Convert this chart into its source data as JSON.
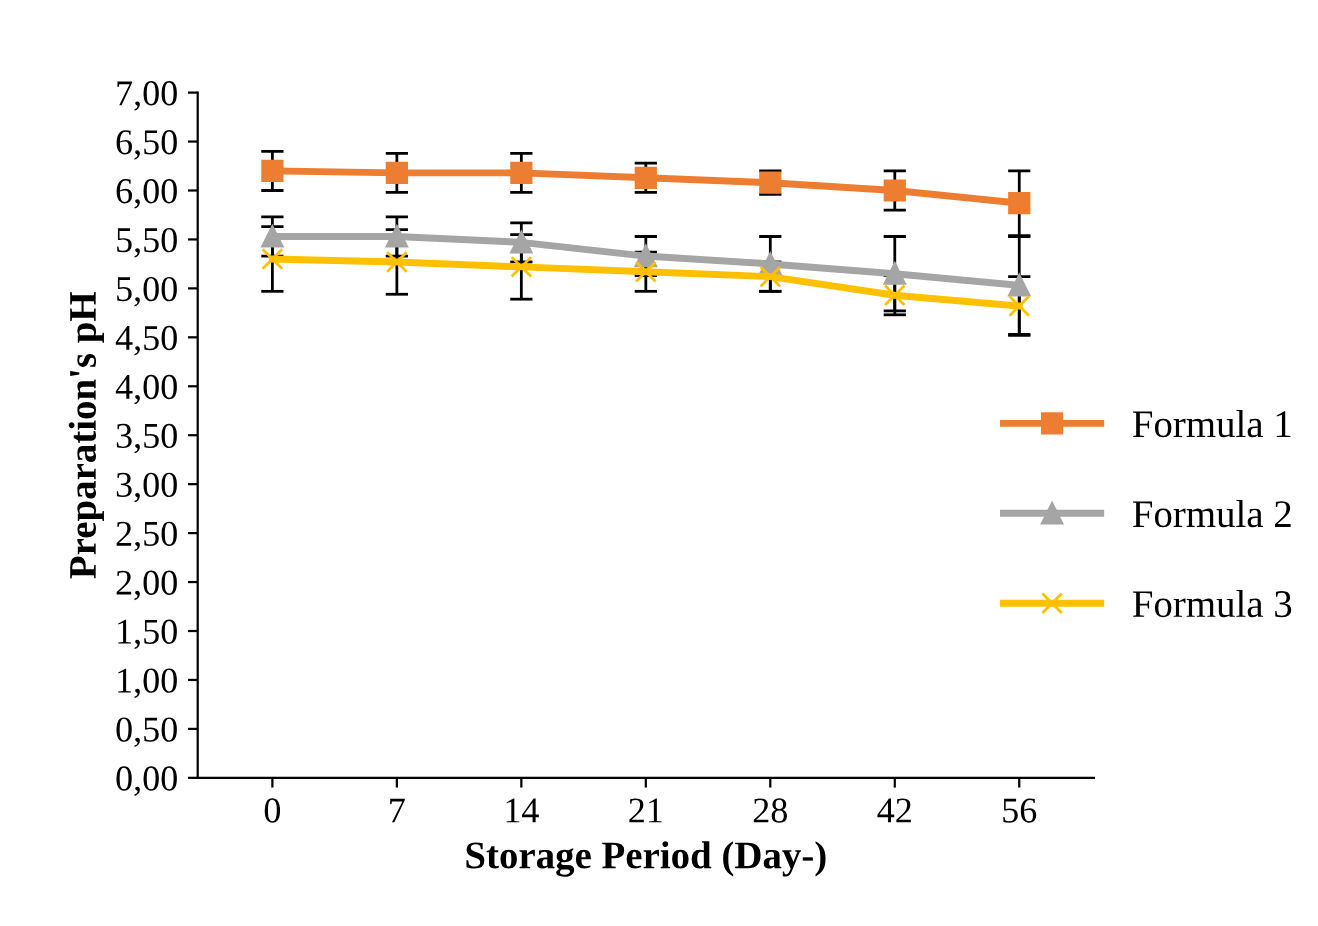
{
  "chart_data": {
    "type": "line",
    "xlabel": "Storage Period (Day-)",
    "ylabel": "Preparation's pH",
    "categories": [
      "0",
      "7",
      "14",
      "21",
      "28",
      "42",
      "56"
    ],
    "series": [
      {
        "name": "Formula 1",
        "color": "#ed7d31",
        "marker": "square",
        "values": [
          6.2,
          6.18,
          6.18,
          6.13,
          6.08,
          6.0,
          5.87
        ],
        "errors": [
          0.2,
          0.2,
          0.2,
          0.15,
          0.12,
          0.2,
          0.33
        ]
      },
      {
        "name": "Formula 2",
        "color": "#a5a5a5",
        "marker": "triangle",
        "values": [
          5.53,
          5.53,
          5.47,
          5.33,
          5.25,
          5.15,
          5.03
        ],
        "errors": [
          0.2,
          0.2,
          0.2,
          0.2,
          0.28,
          0.38,
          0.5
        ]
      },
      {
        "name": "Formula 3",
        "color": "#ffc000",
        "marker": "cross",
        "values": [
          5.3,
          5.27,
          5.22,
          5.17,
          5.12,
          4.93,
          4.82
        ],
        "errors": [
          0.33,
          0.33,
          0.33,
          0.2,
          0.15,
          0.2,
          0.3
        ]
      }
    ],
    "ylim": [
      0,
      7
    ],
    "yticks": [
      {
        "value": 0,
        "label": "0,00"
      },
      {
        "value": 0.5,
        "label": "0,50"
      },
      {
        "value": 1,
        "label": "1,00"
      },
      {
        "value": 1.5,
        "label": "1,50"
      },
      {
        "value": 2,
        "label": "2,00"
      },
      {
        "value": 2.5,
        "label": "2,50"
      },
      {
        "value": 3,
        "label": "3,00"
      },
      {
        "value": 3.5,
        "label": "3,50"
      },
      {
        "value": 4,
        "label": "4,00"
      },
      {
        "value": 4.5,
        "label": "4,50"
      },
      {
        "value": 5,
        "label": "5,00"
      },
      {
        "value": 5.5,
        "label": "5,50"
      },
      {
        "value": 6,
        "label": "6,00"
      },
      {
        "value": 6.5,
        "label": "6,50"
      },
      {
        "value": 7,
        "label": "7,00"
      }
    ],
    "grid": false,
    "legend": "right",
    "line_style": "solid"
  }
}
